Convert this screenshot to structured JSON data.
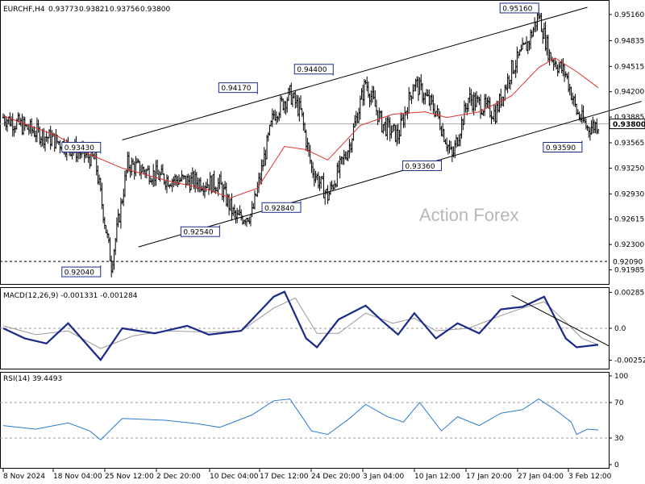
{
  "header": {
    "symbol": "EURCHF,H4",
    "open": "0.93773",
    "high": "0.93821",
    "low": "0.93756",
    "close": "0.93800"
  },
  "watermark": "Action Forex",
  "colors": {
    "candles": "#000000",
    "ma": "#e03030",
    "macd_line": "#1a2a8a",
    "macd_signal": "#999999",
    "rsi": "#2a7ad0",
    "annotation_box": "#1a2a8a",
    "channel": "#000000"
  },
  "chart_data": [
    {
      "type": "line",
      "name": "price",
      "ylim": [
        0.9185,
        0.9528
      ],
      "price_ticks": [
        "0.95160",
        "0.94835",
        "0.94515",
        "0.94200",
        "0.93885",
        "0.93565",
        "0.93250",
        "0.92930",
        "0.92615",
        "0.92300",
        "0.91985"
      ],
      "current_price": "0.93800",
      "support_label": "0.92090",
      "x_labels": [
        "8 Nov 2024",
        "18 Nov 04:00",
        "25 Nov 12:00",
        "2 Dec 20:00",
        "10 Dec 04:00",
        "17 Dec 12:00",
        "24 Dec 20:00",
        "3 Jan 04:00",
        "10 Jan 12:00",
        "17 Jan 20:00",
        "27 Jan 04:00",
        "3 Feb 12:00"
      ],
      "bars": 110,
      "close_path": [
        [
          0,
          0.9388
        ],
        [
          6,
          0.937
        ],
        [
          12,
          0.9352
        ],
        [
          17,
          0.9335
        ],
        [
          20,
          0.9205
        ],
        [
          23,
          0.933
        ],
        [
          30,
          0.9312
        ],
        [
          40,
          0.9305
        ],
        [
          43,
          0.9262
        ],
        [
          46,
          0.9268
        ],
        [
          50,
          0.9392
        ],
        [
          53,
          0.9417
        ],
        [
          55,
          0.9395
        ],
        [
          57,
          0.9325
        ],
        [
          60,
          0.929
        ],
        [
          64,
          0.9353
        ],
        [
          67,
          0.9432
        ],
        [
          70,
          0.938
        ],
        [
          73,
          0.9365
        ],
        [
          76,
          0.9432
        ],
        [
          80,
          0.9396
        ],
        [
          83,
          0.9338
        ],
        [
          86,
          0.9412
        ],
        [
          91,
          0.9393
        ],
        [
          94,
          0.9448
        ],
        [
          97,
          0.948
        ],
        [
          99,
          0.9516
        ],
        [
          101,
          0.9465
        ],
        [
          104,
          0.9442
        ],
        [
          106,
          0.9395
        ],
        [
          108,
          0.9375
        ],
        [
          110,
          0.938
        ]
      ],
      "ma_path": [
        [
          0,
          0.939
        ],
        [
          10,
          0.9365
        ],
        [
          16,
          0.9342
        ],
        [
          22,
          0.9325
        ],
        [
          30,
          0.931
        ],
        [
          38,
          0.9298
        ],
        [
          42,
          0.9288
        ],
        [
          47,
          0.93
        ],
        [
          52,
          0.9352
        ],
        [
          56,
          0.9348
        ],
        [
          60,
          0.9335
        ],
        [
          66,
          0.9378
        ],
        [
          72,
          0.9392
        ],
        [
          78,
          0.9395
        ],
        [
          82,
          0.9388
        ],
        [
          88,
          0.9395
        ],
        [
          94,
          0.9415
        ],
        [
          99,
          0.945
        ],
        [
          102,
          0.9462
        ],
        [
          106,
          0.9445
        ],
        [
          110,
          0.9425
        ]
      ],
      "annotations": [
        {
          "bar": 99,
          "price": 0.9516,
          "label": "0.95160",
          "side": "top"
        },
        {
          "bar": 61,
          "price": 0.944,
          "label": "0.94400",
          "side": "top"
        },
        {
          "bar": 47,
          "price": 0.9417,
          "label": "0.94170",
          "side": "top"
        },
        {
          "bar": 18,
          "price": 0.9343,
          "label": "0.93430",
          "side": "top"
        },
        {
          "bar": 107,
          "price": 0.9359,
          "label": "0.93590",
          "side": "bottom"
        },
        {
          "bar": 81,
          "price": 0.9336,
          "label": "0.93360",
          "side": "bottom"
        },
        {
          "bar": 55,
          "price": 0.9284,
          "label": "0.92840",
          "side": "bottom"
        },
        {
          "bar": 40,
          "price": 0.9254,
          "label": "0.92540",
          "side": "bottom"
        },
        {
          "bar": 18,
          "price": 0.9204,
          "label": "0.92040",
          "side": "bottom"
        }
      ],
      "channel_upper": [
        [
          22,
          0.936
        ],
        [
          108,
          0.9525
        ]
      ],
      "channel_lower": [
        [
          25,
          0.9227
        ],
        [
          118,
          0.9408
        ]
      ],
      "support": 0.9209
    },
    {
      "type": "line",
      "name": "MACD(12,26,9) -0.001331 -0.001284",
      "ylim": [
        -0.003,
        0.003
      ],
      "ticks": [
        "0.00285",
        "0.0",
        "-0.002521"
      ],
      "macd": [
        [
          0,
          0.0
        ],
        [
          4,
          -0.0008
        ],
        [
          8,
          -0.0012
        ],
        [
          12,
          0.0004
        ],
        [
          18,
          -0.0025
        ],
        [
          22,
          0.0
        ],
        [
          28,
          -0.0004
        ],
        [
          34,
          0.0002
        ],
        [
          38,
          -0.0005
        ],
        [
          44,
          -0.0002
        ],
        [
          50,
          0.0025
        ],
        [
          52,
          0.0029
        ],
        [
          56,
          -0.0008
        ],
        [
          58,
          -0.0015
        ],
        [
          62,
          0.0007
        ],
        [
          67,
          0.0018
        ],
        [
          70,
          0.0006
        ],
        [
          73,
          -0.0005
        ],
        [
          76,
          0.0012
        ],
        [
          80,
          -0.0008
        ],
        [
          84,
          0.0004
        ],
        [
          88,
          -0.0004
        ],
        [
          92,
          0.0015
        ],
        [
          96,
          0.0017
        ],
        [
          100,
          0.0025
        ],
        [
          104,
          -0.0008
        ],
        [
          106,
          -0.0015
        ],
        [
          110,
          -0.0013
        ]
      ],
      "signal": [
        [
          0,
          0.0002
        ],
        [
          6,
          -0.0005
        ],
        [
          12,
          -0.0002
        ],
        [
          18,
          -0.0016
        ],
        [
          24,
          -0.0006
        ],
        [
          30,
          -0.0002
        ],
        [
          38,
          -0.0003
        ],
        [
          44,
          -0.0002
        ],
        [
          50,
          0.0016
        ],
        [
          54,
          0.0024
        ],
        [
          58,
          -0.0004
        ],
        [
          62,
          -0.0004
        ],
        [
          67,
          0.0012
        ],
        [
          72,
          0.0004
        ],
        [
          76,
          0.0008
        ],
        [
          80,
          -0.0002
        ],
        [
          86,
          0.0
        ],
        [
          92,
          0.001
        ],
        [
          96,
          0.0016
        ],
        [
          100,
          0.0021
        ],
        [
          104,
          0.0005
        ],
        [
          107,
          -0.0008
        ],
        [
          110,
          -0.0013
        ]
      ],
      "trendline": [
        [
          94,
          0.0026
        ],
        [
          112,
          -0.0014
        ]
      ]
    },
    {
      "type": "line",
      "name": "RSI(14) 39.4493",
      "ylim": [
        0,
        100
      ],
      "ticks": [
        "100",
        "70",
        "30",
        "0"
      ],
      "values": [
        [
          0,
          44
        ],
        [
          6,
          40
        ],
        [
          12,
          47
        ],
        [
          16,
          38
        ],
        [
          18,
          28
        ],
        [
          22,
          52
        ],
        [
          30,
          50
        ],
        [
          36,
          46
        ],
        [
          40,
          42
        ],
        [
          46,
          56
        ],
        [
          50,
          72
        ],
        [
          53,
          74
        ],
        [
          57,
          38
        ],
        [
          60,
          34
        ],
        [
          64,
          52
        ],
        [
          67,
          68
        ],
        [
          71,
          54
        ],
        [
          74,
          48
        ],
        [
          77,
          70
        ],
        [
          81,
          38
        ],
        [
          84,
          54
        ],
        [
          88,
          44
        ],
        [
          92,
          58
        ],
        [
          96,
          62
        ],
        [
          99,
          74
        ],
        [
          102,
          62
        ],
        [
          105,
          48
        ],
        [
          106,
          34
        ],
        [
          108,
          40
        ],
        [
          110,
          39
        ]
      ]
    }
  ]
}
